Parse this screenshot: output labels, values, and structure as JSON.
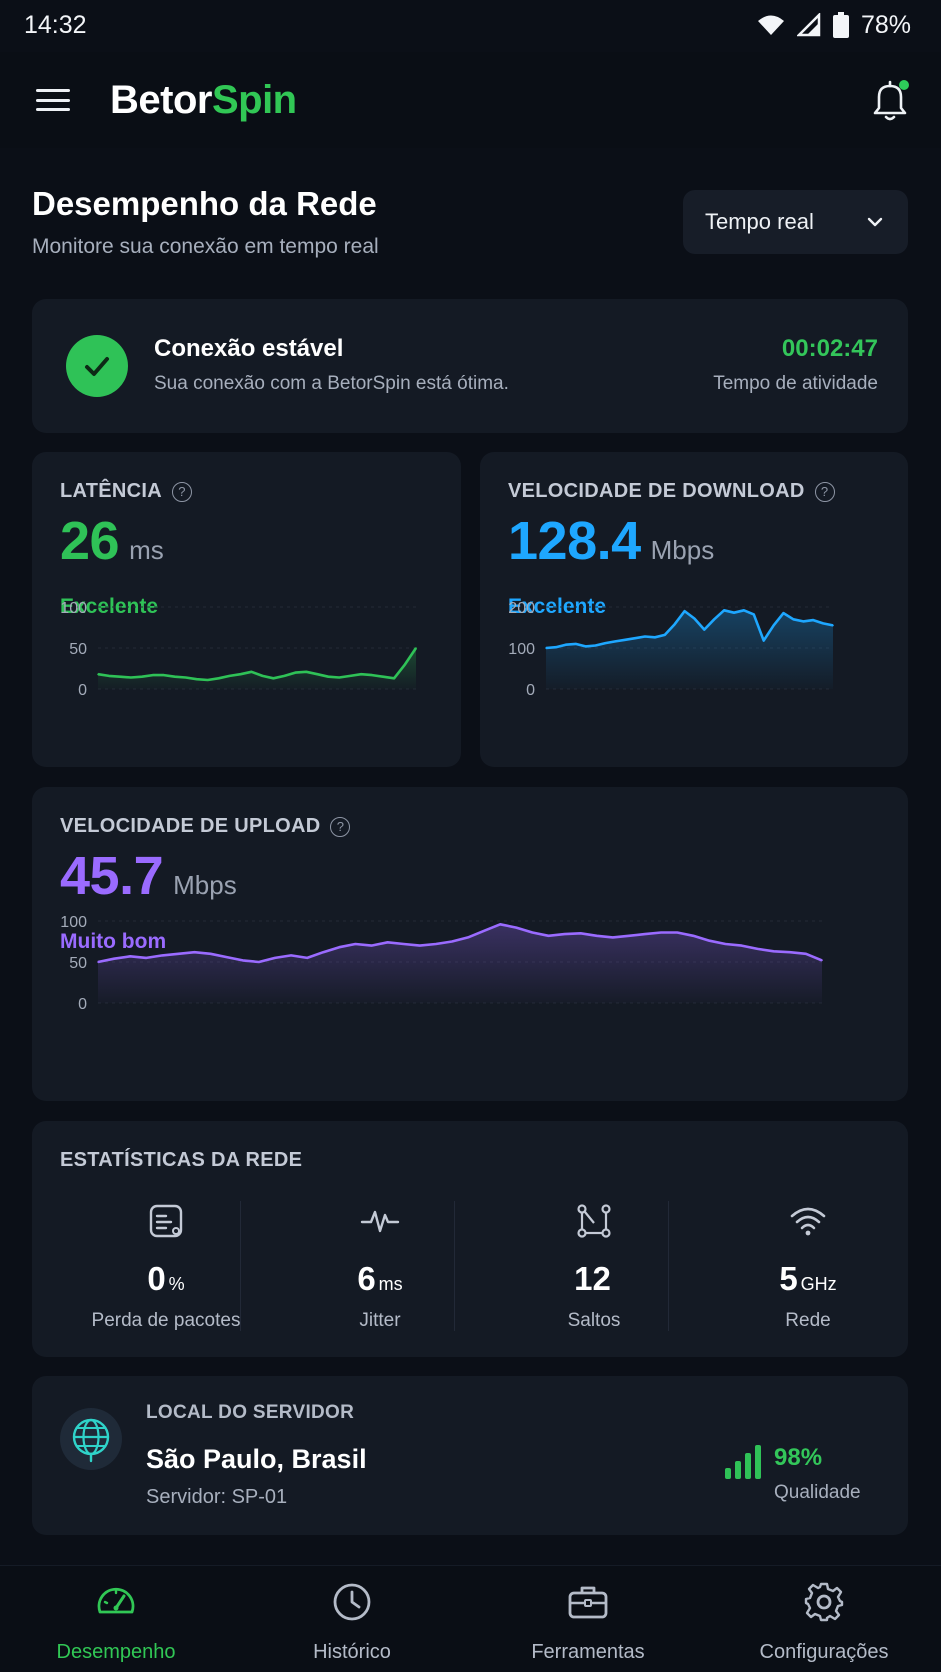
{
  "status_bar": {
    "time": "14:32",
    "battery": "78%"
  },
  "app_bar": {
    "brand_part1": "Betor",
    "brand_part2": "Spin"
  },
  "header": {
    "title": "Desempenho da Rede",
    "subtitle": "Monitore sua conexão em tempo real",
    "range_selected": "Tempo real"
  },
  "connection": {
    "title": "Conexão estável",
    "subtitle": "Sua conexão com a BetorSpin está ótima.",
    "uptime": "00:02:47",
    "uptime_label": "Tempo de atividade"
  },
  "latency": {
    "label": "LATÊNCIA",
    "value": "26",
    "unit": "ms",
    "rating": "Excelente",
    "color": "#2fc257"
  },
  "download": {
    "label": "VELOCIDADE DE DOWNLOAD",
    "value": "128.4",
    "unit": "Mbps",
    "rating": "Excelente",
    "color": "#1ea7ff"
  },
  "upload": {
    "label": "VELOCIDADE DE UPLOAD",
    "value": "45.7",
    "unit": "Mbps",
    "rating": "Muito bom",
    "color": "#9a6bff"
  },
  "chart_data": [
    {
      "type": "area",
      "series_color": "#2fc257",
      "ylim": [
        0,
        100
      ],
      "yticks": [
        "100",
        "50",
        "0"
      ],
      "values": [
        18,
        16,
        15,
        14,
        15,
        17,
        17,
        15,
        14,
        12,
        11,
        13,
        16,
        18,
        21,
        16,
        13,
        16,
        20,
        21,
        18,
        15,
        14,
        16,
        18,
        17,
        15,
        13,
        30,
        50
      ]
    },
    {
      "type": "area",
      "series_color": "#1ea7ff",
      "ylim": [
        0,
        200
      ],
      "yticks": [
        "200",
        "100",
        "0"
      ],
      "values": [
        100,
        102,
        108,
        110,
        104,
        106,
        112,
        116,
        120,
        124,
        128,
        126,
        132,
        158,
        190,
        172,
        145,
        170,
        192,
        186,
        192,
        182,
        118,
        155,
        185,
        170,
        165,
        168,
        160,
        155
      ]
    },
    {
      "type": "area",
      "series_color": "#9a6bff",
      "ylim": [
        0,
        100
      ],
      "yticks": [
        "100",
        "50",
        "0"
      ],
      "values": [
        50,
        54,
        57,
        55,
        58,
        60,
        62,
        60,
        56,
        52,
        50,
        55,
        58,
        55,
        62,
        68,
        72,
        70,
        74,
        72,
        70,
        72,
        75,
        80,
        88,
        96,
        92,
        86,
        82,
        84,
        85,
        82,
        80,
        82,
        84,
        86,
        86,
        82,
        76,
        72,
        70,
        66,
        63,
        62,
        60,
        52
      ]
    }
  ],
  "stats": {
    "title": "ESTATÍSTICAS DA REDE",
    "items": [
      {
        "icon": "packet-icon",
        "value": "0",
        "unit": "%",
        "label": "Perda de pacotes"
      },
      {
        "icon": "pulse-icon",
        "value": "6",
        "unit": "ms",
        "label": "Jitter"
      },
      {
        "icon": "hops-icon",
        "value": "12",
        "unit": "",
        "label": "Saltos"
      },
      {
        "icon": "wifi-icon",
        "value": "5",
        "unit": "GHz",
        "label": "Rede"
      }
    ]
  },
  "server": {
    "label": "LOCAL DO SERVIDOR",
    "city": "São Paulo, Brasil",
    "server_id": "Servidor: SP-01",
    "quality_value": "98%",
    "quality_label": "Qualidade"
  },
  "nav": {
    "items": [
      {
        "label": "Desempenho",
        "icon": "speedometer-icon",
        "active": true
      },
      {
        "label": "Histórico",
        "icon": "clock-icon",
        "active": false
      },
      {
        "label": "Ferramentas",
        "icon": "briefcase-icon",
        "active": false
      },
      {
        "label": "Configurações",
        "icon": "gear-icon",
        "active": false
      }
    ]
  },
  "colors": {
    "accent_green": "#31c755",
    "background": "#0b0f17",
    "card": "#141a24"
  }
}
